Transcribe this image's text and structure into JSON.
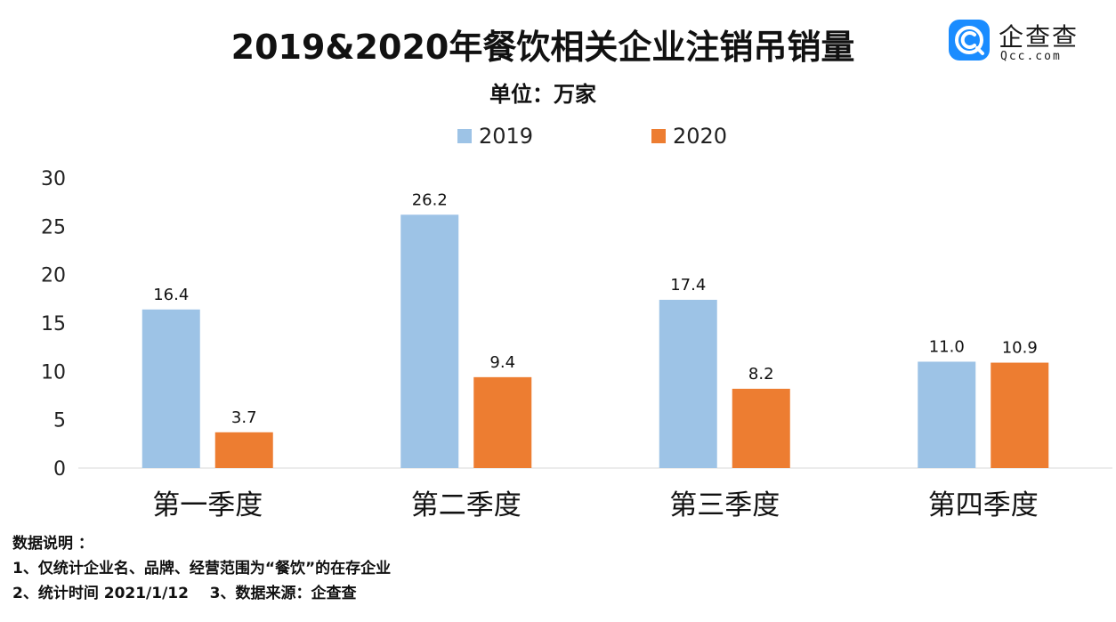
{
  "title": "2019&2020年餐饮相关企业注销吊销量",
  "subtitle": "单位：万家",
  "logo": {
    "name": "企查查",
    "url": "Qcc.com",
    "icon": "qcc-logo-icon",
    "color": "#1a8cff"
  },
  "notes": {
    "heading": "数据说明 ：",
    "lines": [
      "1、仅统计企业名、品牌、经营范围为“餐饮”的在存企业",
      "2、统计时间 2021/1/12    3、数据来源：企查查"
    ]
  },
  "chart_data": {
    "type": "bar",
    "categories": [
      "第一季度",
      "第二季度",
      "第三季度",
      "第四季度"
    ],
    "series": [
      {
        "name": "2019",
        "values": [
          16.4,
          26.2,
          17.4,
          11.0
        ],
        "labels": [
          "16.4",
          "26.2",
          "17.4",
          "11.0"
        ],
        "color": "#9dc3e6"
      },
      {
        "name": "2020",
        "values": [
          3.7,
          9.4,
          8.2,
          10.9
        ],
        "labels": [
          "3.7",
          "9.4",
          "8.2",
          "10.9"
        ],
        "color": "#ed7d31"
      }
    ],
    "yticks": [
      "0",
      "5",
      "10",
      "15",
      "20",
      "25",
      "30"
    ],
    "ylim": [
      0,
      30
    ],
    "grid": false,
    "legend": "top-center"
  }
}
